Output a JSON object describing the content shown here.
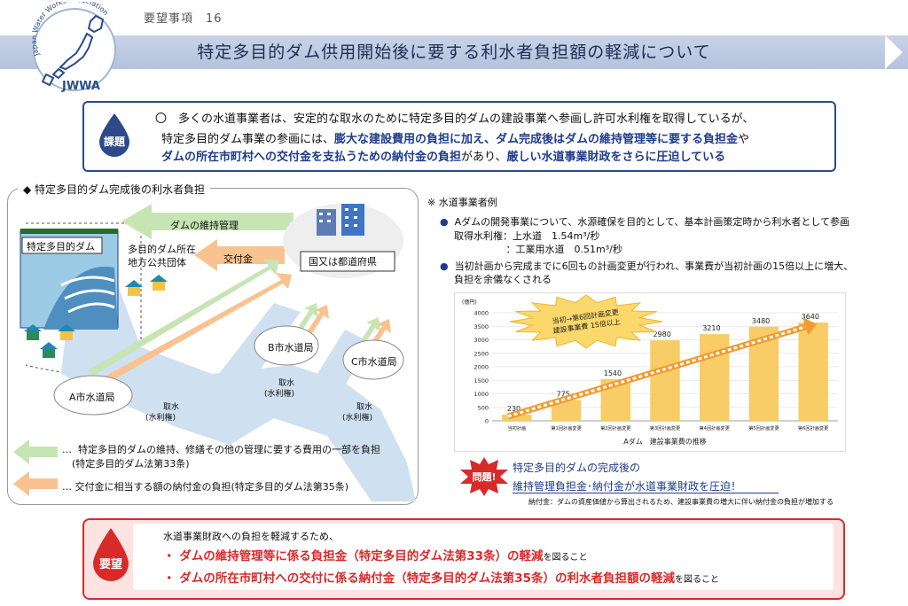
{
  "header": {
    "logo_text": "JWWA",
    "logo_arc_text": "Japan Water Works Association",
    "request_number": "要望事項　16",
    "title": "特定多目的ダム供用開始後に要する利水者負担額の軽減について"
  },
  "issue": {
    "badge": "課題",
    "line1": "〇　多くの水道事業者は、安定的な取水のために特定多目的ダムの建設事業へ参画し許可水利権を取得しているが、",
    "line2_plain": "特定多目的ダム事業の参画には、",
    "line2_bold": "膨大な建設費用の負担に加え、ダム完成後はダムの維持管理等に要する負担金",
    "line2_end": "や",
    "line3_bold_a": "ダムの所在市町村への交付金を支払うための納付金の負担",
    "line3_plain": "があり、",
    "line3_bold_b": "厳しい水道事業財政をさらに圧迫している"
  },
  "diagram": {
    "title": "◆ 特定多目的ダム完成後の利水者負担",
    "dam_label": "特定多目的ダム",
    "local_gov": "多目的ダム所在\n地方公共団体",
    "state_label": "国又は都道府県",
    "arrow_maintenance": "ダムの維持管理",
    "arrow_grant": "交付金",
    "utility_a": "A市水道局",
    "utility_b": "B市水道局",
    "utility_c": "C市水道局",
    "intake_label": "取水",
    "water_right_label": "(水利権)",
    "legend_green": "…  特定多目的ダムの維持、修繕その他の管理に要する費用の一部を負担\n　(特定多目的ダム法第33条)",
    "legend_orange": "…  交付金に相当する額の納付金の負担(特定多目的ダム法第35条)"
  },
  "example": {
    "heading": "※ 水道事業者例",
    "bullet1": "Aダムの開発事業について、水源確保を目的として、基本計画策定時から利水者として参画",
    "bullet1_a": "取得水利権：上水道　1.54m³/秒",
    "bullet1_b": "　　　　　 ：工業用水道　0.51m³/秒",
    "bullet2": "当初計画から完成までに6回もの計画変更が行われ、事業費が当初計画の15倍以上に増大、",
    "bullet2_b": "負担を余儀なくされる"
  },
  "chart_data": {
    "type": "bar",
    "title": "Aダム　建設事業費の推移",
    "unit_label": "(億円)",
    "categories": [
      "当初計画",
      "第1回計画変更",
      "第2回計画変更",
      "第3回計画変更",
      "第4回計画変更",
      "第5回計画変更",
      "第6回計画変更"
    ],
    "values": [
      230,
      775,
      1540,
      2980,
      3210,
      3480,
      3640
    ],
    "ylim": [
      0,
      4000
    ],
    "yticks": [
      0,
      500,
      1000,
      1500,
      2000,
      2500,
      3000,
      3500,
      4000
    ],
    "annotation": "当初→第6回計画変更\n建設事業費 15倍以上",
    "bar_color": "#f8cc66",
    "grid": true
  },
  "problem": {
    "badge": "問題!",
    "line1": "特定多目的ダムの完成後の",
    "line2": "維持管理負担金･納付金が水道事業財政を圧迫！",
    "note": "納付金：ダムの資産価値から算出されるため、建設事業費の増大に伴い納付金の負担が増加する"
  },
  "request": {
    "badge": "要望",
    "intro": "水道事業財政への負担を軽減するため、",
    "item1": "・ ダムの維持管理等に係る負担金（特定多目的ダム法第33条）の軽減",
    "item1_suffix": "を図ること",
    "item2": "・ ダムの所在市町村への交付に係る納付金（特定多目的ダム法第35条）の利水者負担額の軽減",
    "item2_suffix": "を図ること"
  },
  "colors": {
    "navy": "#1f3c8a",
    "red": "#d92a2a",
    "green_arrow": "#c6e5b3",
    "orange_arrow": "#f9c28f",
    "water": "#cfe0f1"
  }
}
